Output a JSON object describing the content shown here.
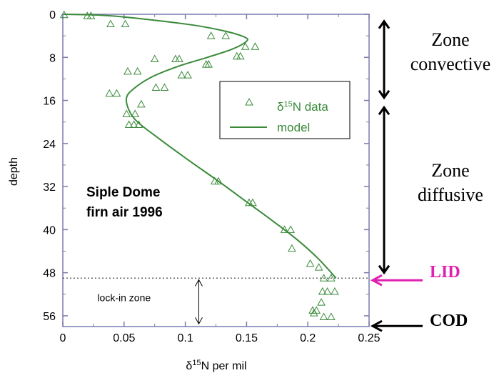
{
  "chart_data": {
    "type": "scatter",
    "xlabel": "δ15N per mil",
    "ylabel": "depth",
    "xlim": [
      0,
      0.25
    ],
    "ylim": [
      0,
      58
    ],
    "y_inverted": true,
    "x_ticks": [
      "0",
      "0.05",
      "0.1",
      "0.15",
      "0.2",
      "0.25"
    ],
    "x_tick_values": [
      0,
      0.05,
      0.1,
      0.15,
      0.2,
      0.25
    ],
    "y_ticks": [
      "0",
      "8",
      "16",
      "24",
      "32",
      "40",
      "48",
      "56"
    ],
    "y_tick_values": [
      0,
      8,
      16,
      24,
      32,
      40,
      48,
      56
    ],
    "grid": false,
    "legend_placement": "top-right",
    "series": [
      {
        "name": "δ15N data",
        "marker": "triangle",
        "color": "#3a8a3a",
        "points": [
          [
            0.001,
            0.1
          ],
          [
            0.02,
            0.3
          ],
          [
            0.023,
            0.3
          ],
          [
            0.039,
            1.8
          ],
          [
            0.051,
            1.8
          ],
          [
            0.121,
            4.0
          ],
          [
            0.133,
            4.0
          ],
          [
            0.149,
            6.0
          ],
          [
            0.157,
            6.0
          ],
          [
            0.142,
            7.8
          ],
          [
            0.145,
            7.8
          ],
          [
            0.075,
            8.3
          ],
          [
            0.092,
            8.3
          ],
          [
            0.095,
            8.3
          ],
          [
            0.117,
            9.3
          ],
          [
            0.119,
            9.3
          ],
          [
            0.053,
            10.6
          ],
          [
            0.061,
            10.6
          ],
          [
            0.097,
            11.3
          ],
          [
            0.102,
            11.3
          ],
          [
            0.076,
            13.6
          ],
          [
            0.083,
            13.6
          ],
          [
            0.038,
            14.7
          ],
          [
            0.044,
            14.7
          ],
          [
            0.064,
            16.7
          ],
          [
            0.052,
            18.5
          ],
          [
            0.059,
            18.5
          ],
          [
            0.054,
            20.5
          ],
          [
            0.058,
            20.5
          ],
          [
            0.062,
            20.5
          ],
          [
            0.124,
            31.0
          ],
          [
            0.127,
            31.0
          ],
          [
            0.152,
            35.0
          ],
          [
            0.155,
            35.0
          ],
          [
            0.181,
            40.0
          ],
          [
            0.186,
            40.0
          ],
          [
            0.187,
            43.5
          ],
          [
            0.202,
            46.3
          ],
          [
            0.209,
            47.0
          ],
          [
            0.213,
            49.0
          ],
          [
            0.219,
            49.0
          ],
          [
            0.212,
            51.5
          ],
          [
            0.216,
            51.5
          ],
          [
            0.222,
            51.5
          ],
          [
            0.211,
            53.5
          ],
          [
            0.204,
            55.0
          ],
          [
            0.207,
            55.0
          ],
          [
            0.205,
            55.5
          ],
          [
            0.213,
            56.2
          ],
          [
            0.219,
            56.2
          ]
        ]
      },
      {
        "name": "model",
        "type": "line",
        "color": "#3a8a3a",
        "points": [
          [
            0.001,
            0.0
          ],
          [
            0.04,
            0.3
          ],
          [
            0.1,
            1.8
          ],
          [
            0.13,
            3.0
          ],
          [
            0.148,
            4.2
          ],
          [
            0.15,
            5.0
          ],
          [
            0.138,
            6.5
          ],
          [
            0.118,
            8.0
          ],
          [
            0.095,
            9.6
          ],
          [
            0.073,
            11.6
          ],
          [
            0.058,
            13.8
          ],
          [
            0.052,
            15.5
          ],
          [
            0.054,
            17.8
          ],
          [
            0.061,
            20.0
          ],
          [
            0.078,
            23.0
          ],
          [
            0.102,
            27.0
          ],
          [
            0.127,
            31.0
          ],
          [
            0.151,
            35.0
          ],
          [
            0.172,
            38.5
          ],
          [
            0.192,
            42.0
          ],
          [
            0.209,
            45.5
          ],
          [
            0.223,
            49.0
          ]
        ]
      }
    ],
    "annotations": {
      "site_text": [
        "Siple Dome",
        "firn air 1996"
      ],
      "lock_in_text": "lock-in zone",
      "lock_in_line_depth": 49.0,
      "lock_in_arrow_range": [
        49.3,
        57.5
      ]
    },
    "right_markers": [
      {
        "from": 0.5,
        "to": 15.5
      },
      {
        "from": 16.5,
        "to": 48.0
      }
    ],
    "side_arrows": [
      {
        "label": "LID",
        "depth": 49.0,
        "color": "#e020b0"
      },
      {
        "label": "COD",
        "depth": 57.5,
        "color": "#000000"
      }
    ]
  },
  "zones": {
    "convective": [
      "Zone",
      "convective"
    ],
    "diffusive": [
      "Zone",
      "diffusive"
    ]
  },
  "labels": {
    "lid": "LID",
    "cod": "COD"
  },
  "colors": {
    "data": "#3a8a3a",
    "lid": "#e020b0",
    "cod": "#000000",
    "axis": "#7a7ab0"
  }
}
